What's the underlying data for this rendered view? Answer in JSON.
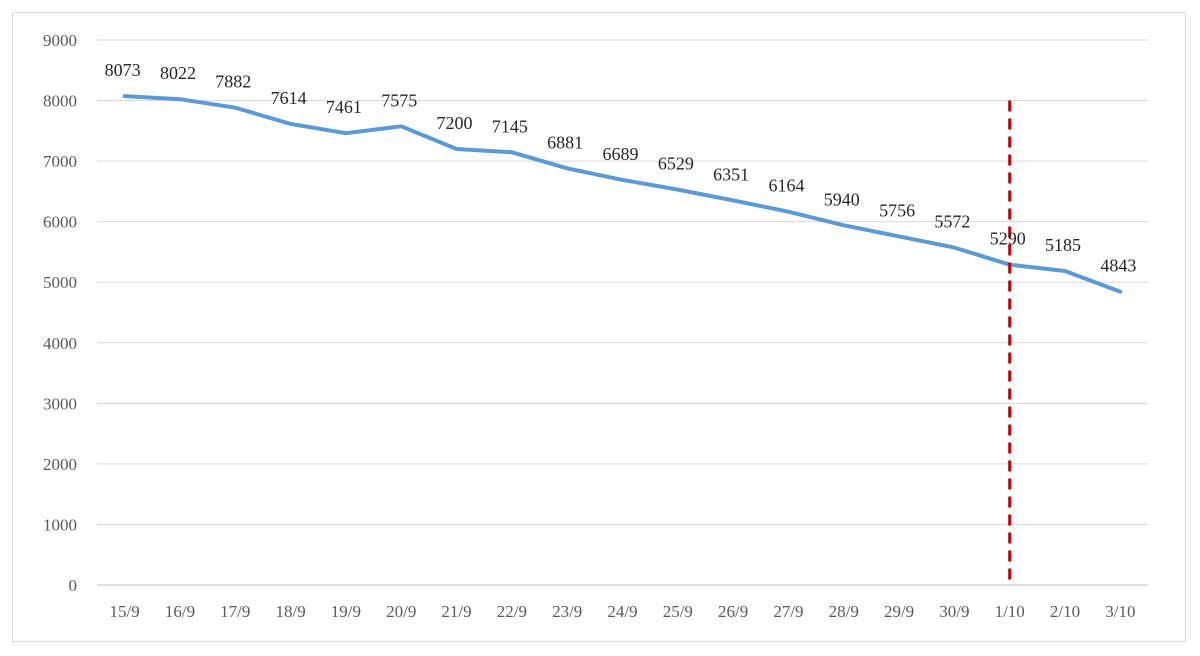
{
  "chart_data": {
    "type": "line",
    "title": "",
    "xlabel": "",
    "ylabel": "",
    "categories": [
      "15/9",
      "16/9",
      "17/9",
      "18/9",
      "19/9",
      "20/9",
      "21/9",
      "22/9",
      "23/9",
      "24/9",
      "25/9",
      "26/9",
      "27/9",
      "28/9",
      "29/9",
      "30/9",
      "1/10",
      "2/10",
      "3/10"
    ],
    "series": [
      {
        "values": [
          8073,
          8022,
          7882,
          7614,
          7461,
          7575,
          7200,
          7145,
          6881,
          6689,
          6529,
          6351,
          6164,
          5940,
          5756,
          5572,
          5290,
          5185,
          4843
        ],
        "color": "#5b9bd5"
      }
    ],
    "ylim": [
      0,
      9000
    ],
    "yticks": [
      0,
      1000,
      2000,
      3000,
      4000,
      5000,
      6000,
      7000,
      8000,
      9000
    ],
    "grid": true,
    "legend": "none",
    "data_labels": true,
    "reference_line": {
      "type": "vertical",
      "at_category": "1/10",
      "style": "dashed",
      "color": "#c00000"
    }
  }
}
